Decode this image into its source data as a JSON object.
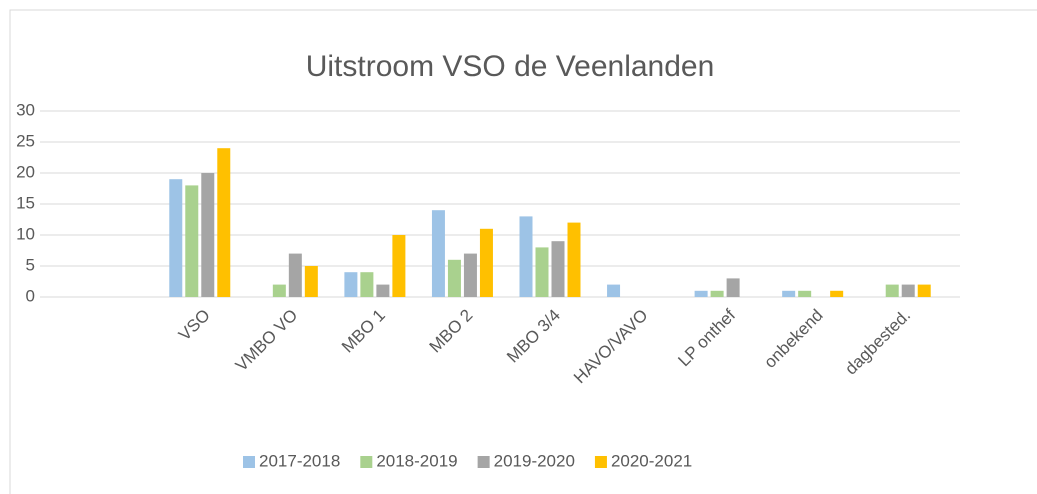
{
  "chart_data": {
    "type": "bar",
    "title": "Uitstroom VSO de Veenlanden",
    "categories": [
      "VSO",
      "VMBO VO",
      "MBO 1",
      "MBO 2",
      "MBO 3/4",
      "HAVO/VAVO",
      "LP onthef",
      "onbekend",
      "dagbested."
    ],
    "series": [
      {
        "name": "2017-2018",
        "color": "#9dc3e6",
        "values": [
          19,
          0,
          4,
          14,
          13,
          2,
          1,
          1,
          0
        ]
      },
      {
        "name": "2018-2019",
        "color": "#a9d18e",
        "values": [
          18,
          2,
          4,
          6,
          8,
          0,
          1,
          1,
          2
        ]
      },
      {
        "name": "2019-2020",
        "color": "#a5a5a5",
        "values": [
          20,
          7,
          2,
          7,
          9,
          0,
          3,
          0,
          2
        ]
      },
      {
        "name": "2020-2021",
        "color": "#ffc000",
        "values": [
          24,
          5,
          10,
          11,
          12,
          0,
          0,
          1,
          2
        ]
      }
    ],
    "ylim": [
      0,
      30
    ],
    "yticks": [
      0,
      5,
      10,
      15,
      20,
      25,
      30
    ],
    "grid": true,
    "legend": "bottom"
  }
}
